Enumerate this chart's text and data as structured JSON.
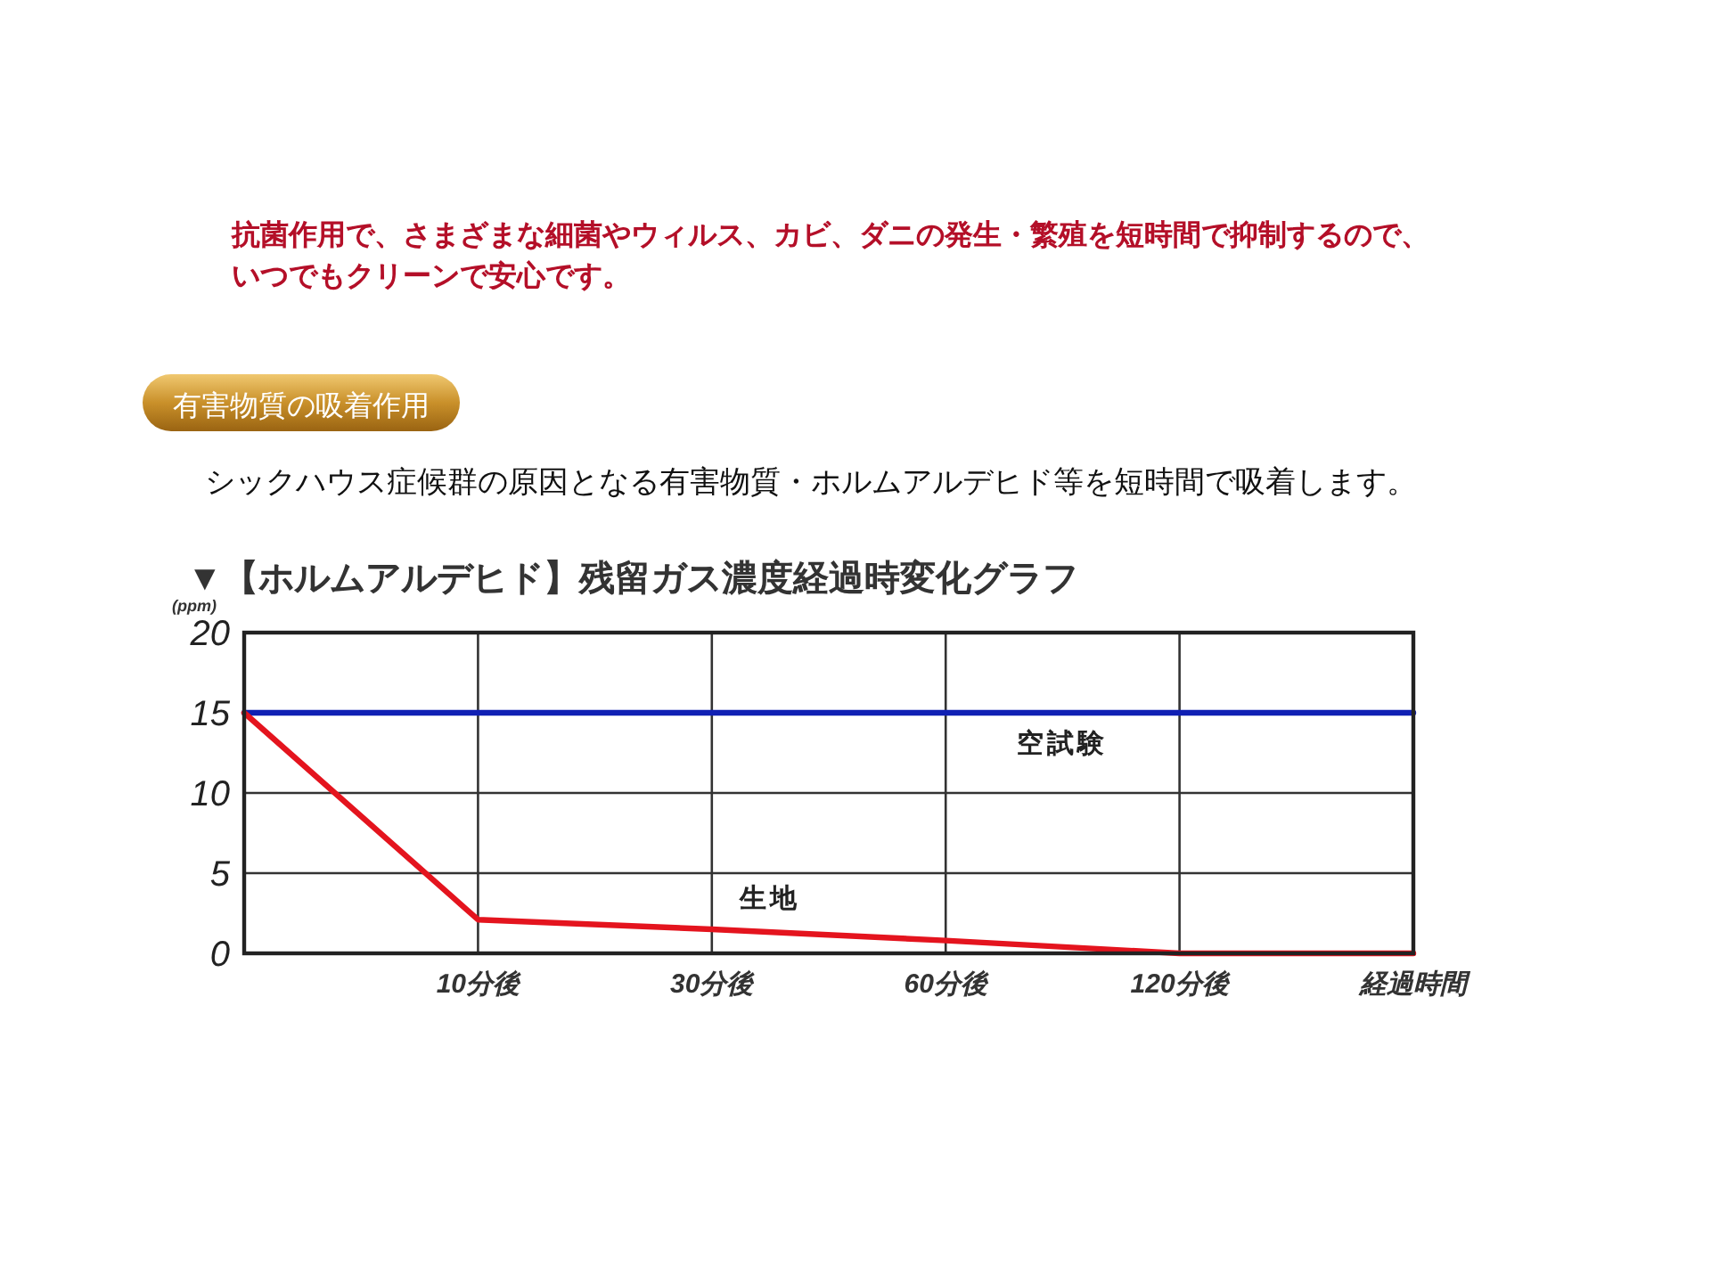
{
  "chart_data": {
    "type": "line",
    "title": "▼【ホルムアルデヒド】残留ガス濃度経過時変化グラフ",
    "ylabel": "(ppm)",
    "xlabel": "経過時間",
    "categories": [
      null,
      "10分後",
      "30分後",
      "60分後",
      "120分後",
      null
    ],
    "series": [
      {
        "name": "空試験",
        "color": "#1020b4",
        "values": [
          15,
          15,
          15,
          15,
          15,
          15
        ]
      },
      {
        "name": "生地",
        "color": "#e4141e",
        "values": [
          15,
          2.1,
          1.5,
          0.8,
          0,
          0
        ]
      }
    ],
    "ylim": [
      0,
      20
    ],
    "yticks": [
      0,
      5,
      10,
      15,
      20
    ],
    "grid": true,
    "legend": false,
    "marker": "none",
    "line_style": "solid",
    "annotations": [
      "抗菌作用で、さまざまな細菌やウィルス、カビ、ダニの発生・繁殖を短時間で抑制するので、いつでもクリーンで安心です。",
      "有害物質の吸着作用",
      "シックハウス症候群の原因となる有害物質・ホルムアルデヒド等を短時間で吸着します。"
    ]
  }
}
